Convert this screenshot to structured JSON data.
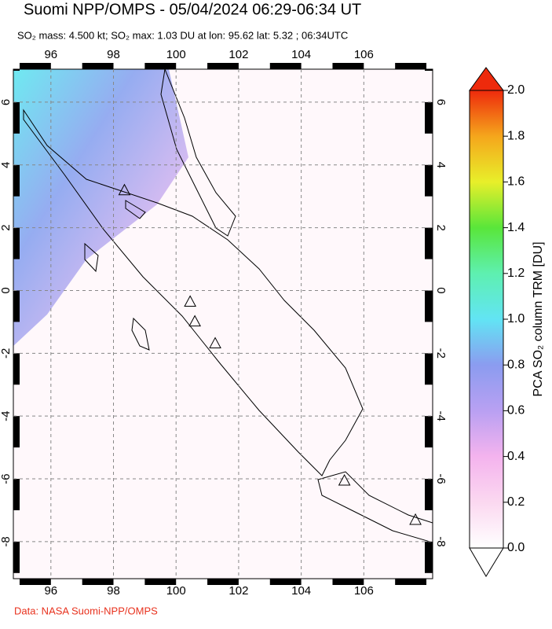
{
  "title": "Suomi NPP/OMPS - 05/04/2024 06:29-06:34 UT",
  "subtitle": "SO₂ mass: 4.500 kt; SO₂ max: 1.03 DU at lon: 95.62 lat: 5.32 ; 06:34UTC",
  "footer": "Data: NASA Suomi-NPP/OMPS",
  "map": {
    "lonlim": [
      94.8,
      108.2
    ],
    "latlim": [
      -9.18,
      7.05
    ],
    "lonticks": [
      96,
      98,
      100,
      102,
      104,
      106
    ],
    "latticks": [
      6,
      4,
      2,
      0,
      -2,
      -4,
      -6,
      -8
    ],
    "grid": true,
    "volcanoes": [
      {
        "lon": 98.35,
        "lat": 3.2
      },
      {
        "lon": 100.45,
        "lat": -0.35
      },
      {
        "lon": 100.6,
        "lat": -0.98
      },
      {
        "lon": 101.25,
        "lat": -1.68
      },
      {
        "lon": 105.38,
        "lat": -6.05
      },
      {
        "lon": 107.65,
        "lat": -7.3
      }
    ]
  },
  "colorbar": {
    "label": "PCA SO₂ column TRM [DU]",
    "lim": [
      0,
      2
    ],
    "ticks": [
      {
        "value": 0,
        "label": "0.0"
      },
      {
        "value": 0.2,
        "label": "0.2"
      },
      {
        "value": 0.4,
        "label": "0.4"
      },
      {
        "value": 0.6,
        "label": "0.6"
      },
      {
        "value": 0.8,
        "label": "0.8"
      },
      {
        "value": 1,
        "label": "1.0"
      },
      {
        "value": 1.2,
        "label": "1.2"
      },
      {
        "value": 1.4,
        "label": "1.4"
      },
      {
        "value": 1.6,
        "label": "1.6"
      },
      {
        "value": 1.8,
        "label": "1.8"
      },
      {
        "value": 2,
        "label": "2.0"
      }
    ]
  }
}
